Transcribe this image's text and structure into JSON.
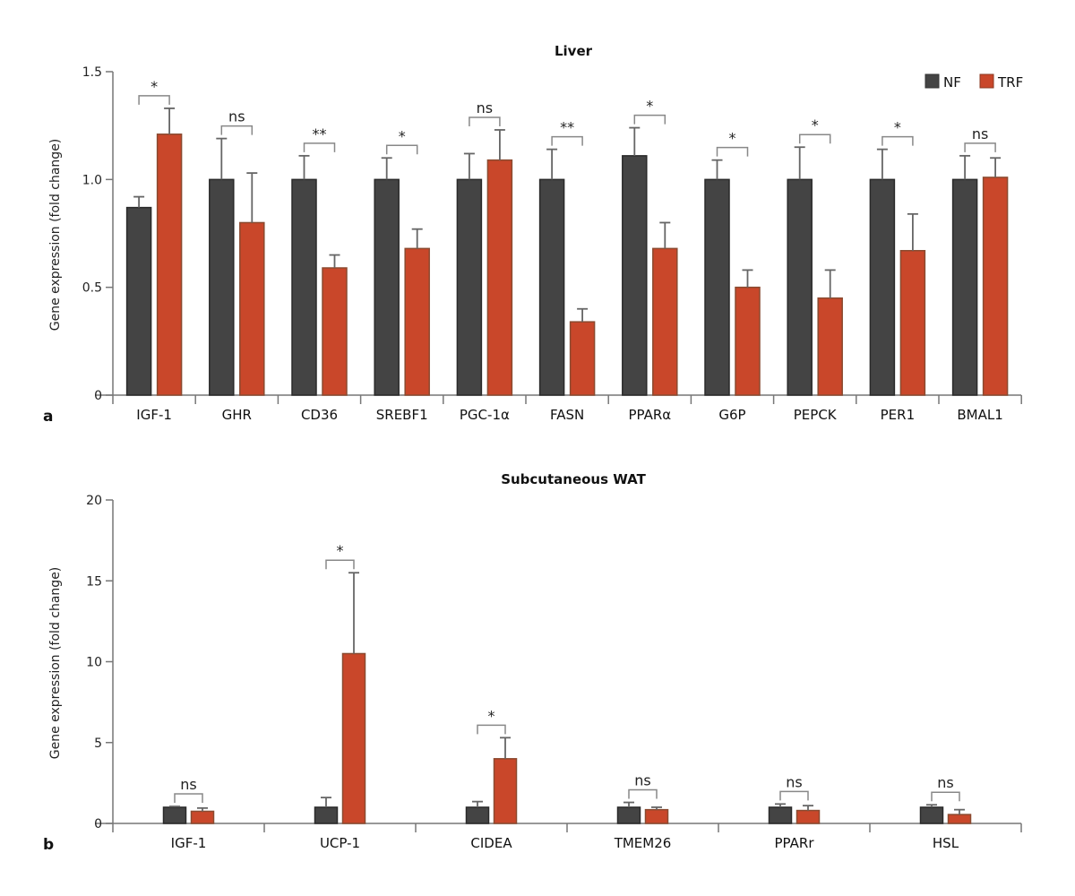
{
  "colors": {
    "NF": "#444444",
    "TRF": "#c9472a"
  },
  "chart_data": [
    {
      "type": "bar",
      "panel": "a",
      "title": "Liver",
      "ylabel": "Gene expression (fold change)",
      "xlabel": "",
      "ylim": [
        0,
        1.5
      ],
      "yticks": [
        "0",
        "0.5",
        "1.0",
        "1.5"
      ],
      "ytick_values": [
        0,
        0.5,
        1.0,
        1.5
      ],
      "legend": {
        "position": "top-right",
        "entries": [
          "NF",
          "TRF"
        ]
      },
      "categories": [
        "IGF-1",
        "GHR",
        "CD36",
        "SREBF1",
        "PGC-1α",
        "FASN",
        "PPARα",
        "G6P",
        "PEPCK",
        "PER1",
        "BMAL1"
      ],
      "series": [
        {
          "name": "NF",
          "values": [
            0.87,
            1.0,
            1.0,
            1.0,
            1.0,
            1.0,
            1.11,
            1.0,
            1.0,
            1.0,
            1.0
          ],
          "error": [
            0.05,
            0.19,
            0.11,
            0.1,
            0.12,
            0.14,
            0.13,
            0.09,
            0.15,
            0.14,
            0.11
          ]
        },
        {
          "name": "TRF",
          "values": [
            1.21,
            0.8,
            0.59,
            0.68,
            1.09,
            0.34,
            0.68,
            0.5,
            0.45,
            0.67,
            1.01
          ],
          "error": [
            0.12,
            0.23,
            0.06,
            0.09,
            0.14,
            0.06,
            0.12,
            0.08,
            0.13,
            0.17,
            0.09
          ]
        }
      ],
      "significance": [
        "*",
        "ns",
        "**",
        "*",
        "ns",
        "**",
        "*",
        "*",
        "*",
        "*",
        "ns"
      ]
    },
    {
      "type": "bar",
      "panel": "b",
      "title": "Subcutaneous WAT",
      "ylabel": "Gene expression (fold change)",
      "xlabel": "",
      "ylim": [
        0,
        20
      ],
      "yticks": [
        "0",
        "5",
        "10",
        "15",
        "20"
      ],
      "ytick_values": [
        0,
        5,
        10,
        15,
        20
      ],
      "categories": [
        "IGF-1",
        "UCP-1",
        "CIDEA",
        "TMEM26",
        "PPARr",
        "HSL"
      ],
      "series": [
        {
          "name": "NF",
          "values": [
            1.0,
            1.0,
            1.0,
            1.0,
            1.0,
            1.0
          ],
          "error": [
            0.05,
            0.6,
            0.35,
            0.3,
            0.2,
            0.15
          ]
        },
        {
          "name": "TRF",
          "values": [
            0.75,
            10.5,
            4.0,
            0.85,
            0.8,
            0.55
          ],
          "error": [
            0.2,
            5.0,
            1.3,
            0.15,
            0.3,
            0.3
          ]
        }
      ],
      "significance": [
        "ns",
        "*",
        "*",
        "ns",
        "ns",
        "ns"
      ]
    }
  ]
}
